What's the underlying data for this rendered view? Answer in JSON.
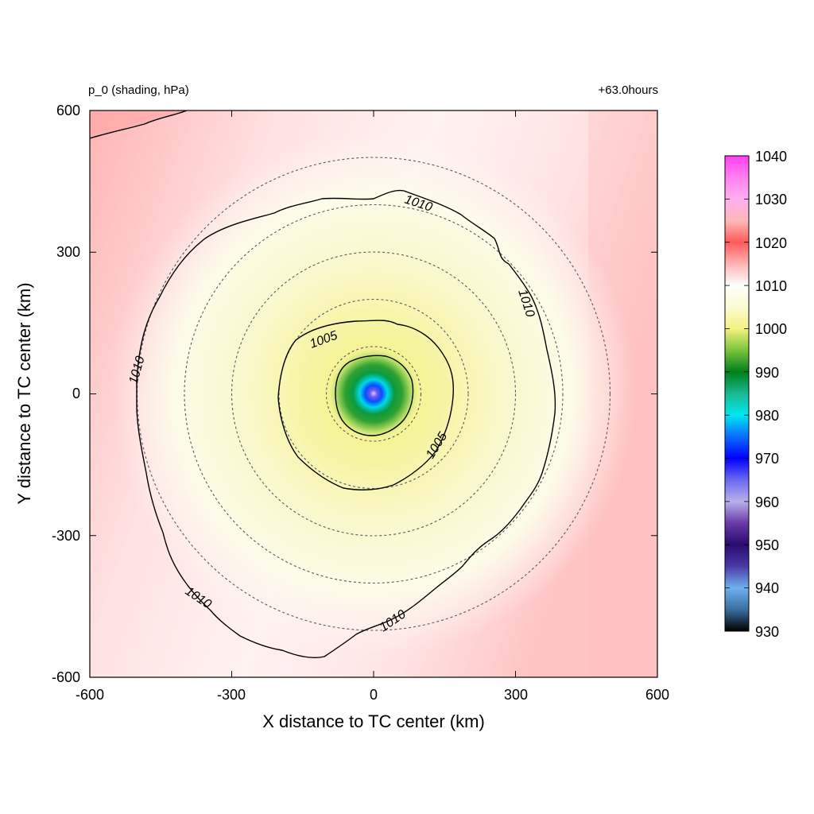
{
  "chart_data": {
    "type": "heatmap",
    "title_left": "p_0 (shading, hPa)",
    "title_right": "+63.0hours",
    "xlabel": "X distance to TC center (km)",
    "ylabel": "Y distance to TC center (km)",
    "xlim": [
      -600,
      600
    ],
    "ylim": [
      -600,
      600
    ],
    "xticks": [
      "-600",
      "-300",
      "0",
      "300",
      "600"
    ],
    "yticks": [
      "600",
      "300",
      "0",
      "-300",
      "-600"
    ],
    "colorbar": {
      "min": 930,
      "max": 1040,
      "ticks": [
        "1040",
        "1030",
        "1020",
        "1010",
        "1000",
        "990",
        "980",
        "970",
        "960",
        "950",
        "940",
        "930"
      ],
      "stops": [
        {
          "value": 930,
          "color": "#000000"
        },
        {
          "value": 935,
          "color": "#3a6ea0"
        },
        {
          "value": 940,
          "color": "#6fb0ef"
        },
        {
          "value": 945,
          "color": "#4a3aa8"
        },
        {
          "value": 950,
          "color": "#2a0a70"
        },
        {
          "value": 955,
          "color": "#6a3aa8"
        },
        {
          "value": 960,
          "color": "#b8b0ec"
        },
        {
          "value": 965,
          "color": "#6a6af0"
        },
        {
          "value": 970,
          "color": "#0000ff"
        },
        {
          "value": 975,
          "color": "#0a6cff"
        },
        {
          "value": 980,
          "color": "#00e8f0"
        },
        {
          "value": 985,
          "color": "#1ab890"
        },
        {
          "value": 990,
          "color": "#007f1a"
        },
        {
          "value": 995,
          "color": "#7ac43a"
        },
        {
          "value": 1000,
          "color": "#f4f280"
        },
        {
          "value": 1005,
          "color": "#fbfbd0"
        },
        {
          "value": 1010,
          "color": "#ffffff"
        },
        {
          "value": 1015,
          "color": "#ffb4b4"
        },
        {
          "value": 1020,
          "color": "#ff5a5a"
        },
        {
          "value": 1025,
          "color": "#ffb8b8"
        },
        {
          "value": 1030,
          "color": "#ffb0f0"
        },
        {
          "value": 1035,
          "color": "#ff80f0"
        },
        {
          "value": 1040,
          "color": "#ff40f0"
        }
      ]
    },
    "center_pressure": 970,
    "contours": [
      {
        "value": 1000,
        "label": ""
      },
      {
        "value": 1005,
        "label": "1005"
      },
      {
        "value": 1010,
        "label": "1010"
      }
    ],
    "reference_circles_km": [
      100,
      200,
      300,
      400,
      500
    ],
    "grid": false
  }
}
